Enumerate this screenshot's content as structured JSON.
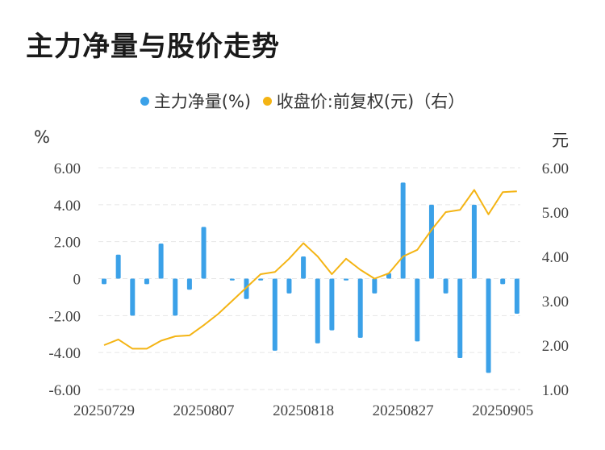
{
  "title": "主力净量与股价走势",
  "chart_data": {
    "type": "bar+line",
    "title": "主力净量与股价走势",
    "legend": [
      {
        "name": "主力净量(%)",
        "color": "#3ba1e8"
      },
      {
        "name": "收盘价:前复权(元)（右）",
        "color": "#f4b414"
      }
    ],
    "left_unit": "%",
    "right_unit": "元",
    "left_ylim": [
      -6,
      6
    ],
    "right_ylim": [
      1,
      6
    ],
    "left_ticks": [
      "6.00",
      "4.00",
      "2.00",
      "0",
      "-2.00",
      "-4.00",
      "-6.00"
    ],
    "right_ticks": [
      "6.00",
      "5.00",
      "4.00",
      "3.00",
      "2.00",
      "1.00"
    ],
    "x_tick_labels": [
      "20250729",
      "20250807",
      "20250818",
      "20250827",
      "20250905"
    ],
    "x_tick_indices": [
      0,
      7,
      14,
      21,
      28
    ],
    "grid": true,
    "series": [
      {
        "name": "主力净量(%)",
        "type": "bar",
        "axis": "left",
        "values": [
          -0.3,
          1.3,
          -2.0,
          -0.3,
          1.9,
          -2.0,
          -0.6,
          2.8,
          0,
          -0.1,
          -1.1,
          -0.1,
          -3.9,
          -0.8,
          1.2,
          -3.5,
          -2.8,
          -0.1,
          -3.2,
          -0.8,
          0.3,
          5.2,
          -3.4,
          4.0,
          -0.8,
          -4.3,
          4.0,
          -5.1,
          -0.3,
          -1.9
        ]
      },
      {
        "name": "收盘价:前复权(元)（右）",
        "type": "line",
        "axis": "right",
        "values": [
          2.0,
          2.13,
          1.92,
          1.92,
          2.1,
          2.2,
          2.22,
          2.45,
          2.7,
          3.0,
          3.3,
          3.6,
          3.65,
          3.95,
          4.3,
          4.0,
          3.6,
          3.95,
          3.7,
          3.5,
          3.62,
          4.0,
          4.15,
          4.6,
          5.0,
          5.05,
          5.5,
          4.95,
          5.45,
          5.47
        ]
      }
    ]
  }
}
